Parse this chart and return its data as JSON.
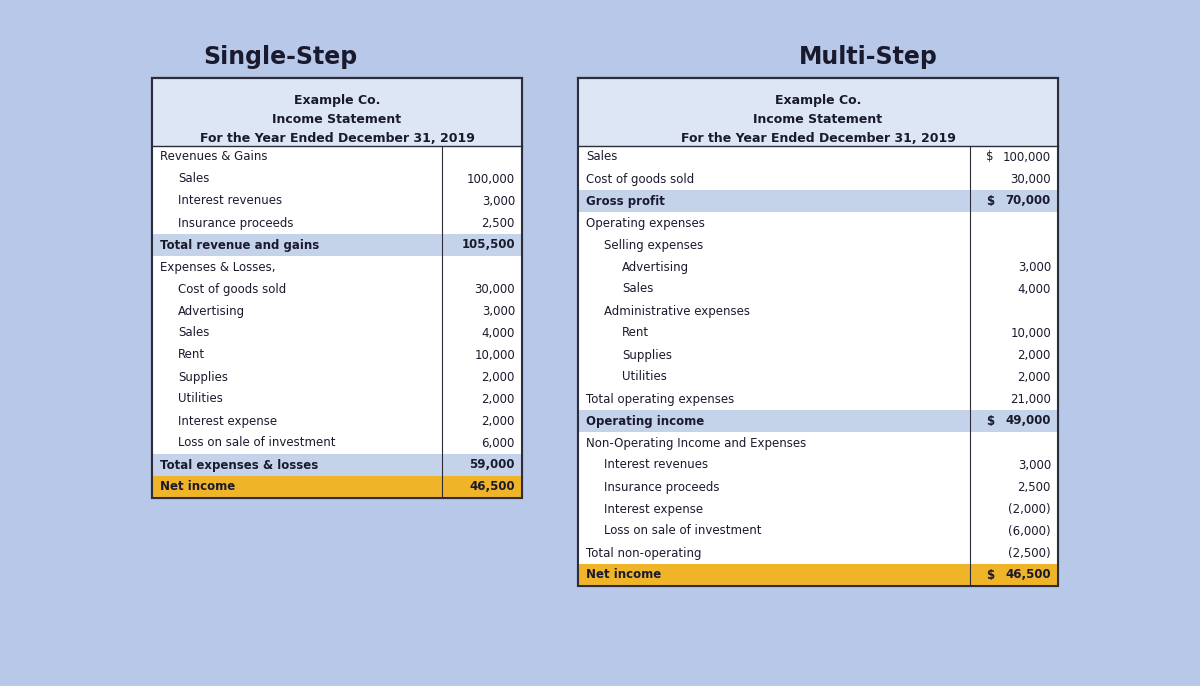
{
  "bg_color": "#b8c8e8",
  "table_bg": "#ffffff",
  "header_bg": "#dce6f5",
  "highlight_bg": "#c5d3ea",
  "gold_bg": "#f0b429",
  "border_color": "#2c2c3a",
  "text_color": "#1a1a2e",
  "title_left": "Single-Step",
  "title_right": "Multi-Step",
  "left_header": [
    "Example Co.",
    "Income Statement",
    "For the Year Ended December 31, 2019"
  ],
  "right_header": [
    "Example Co.",
    "Income Statement",
    "For the Year Ended December 31, 2019"
  ],
  "single_step_rows": [
    {
      "label": "Revenues & Gains",
      "value": "",
      "indent": 0,
      "bold": false,
      "highlight": false,
      "gold": false
    },
    {
      "label": "Sales",
      "value": "100,000",
      "indent": 1,
      "bold": false,
      "highlight": false,
      "gold": false
    },
    {
      "label": "Interest revenues",
      "value": "3,000",
      "indent": 1,
      "bold": false,
      "highlight": false,
      "gold": false
    },
    {
      "label": "Insurance proceeds",
      "value": "2,500",
      "indent": 1,
      "bold": false,
      "highlight": false,
      "gold": false
    },
    {
      "label": "Total revenue and gains",
      "value": "105,500",
      "indent": 0,
      "bold": true,
      "highlight": true,
      "gold": false
    },
    {
      "label": "Expenses & Losses,",
      "value": "",
      "indent": 0,
      "bold": false,
      "highlight": false,
      "gold": false
    },
    {
      "label": "Cost of goods sold",
      "value": "30,000",
      "indent": 1,
      "bold": false,
      "highlight": false,
      "gold": false
    },
    {
      "label": "Advertising",
      "value": "3,000",
      "indent": 1,
      "bold": false,
      "highlight": false,
      "gold": false
    },
    {
      "label": "Sales",
      "value": "4,000",
      "indent": 1,
      "bold": false,
      "highlight": false,
      "gold": false
    },
    {
      "label": "Rent",
      "value": "10,000",
      "indent": 1,
      "bold": false,
      "highlight": false,
      "gold": false
    },
    {
      "label": "Supplies",
      "value": "2,000",
      "indent": 1,
      "bold": false,
      "highlight": false,
      "gold": false
    },
    {
      "label": "Utilities",
      "value": "2,000",
      "indent": 1,
      "bold": false,
      "highlight": false,
      "gold": false
    },
    {
      "label": "Interest expense",
      "value": "2,000",
      "indent": 1,
      "bold": false,
      "highlight": false,
      "gold": false
    },
    {
      "label": "Loss on sale of investment",
      "value": "6,000",
      "indent": 1,
      "bold": false,
      "highlight": false,
      "gold": false
    },
    {
      "label": "Total expenses & losses",
      "value": "59,000",
      "indent": 0,
      "bold": true,
      "highlight": true,
      "gold": false
    },
    {
      "label": "Net income",
      "value": "46,500",
      "indent": 0,
      "bold": true,
      "highlight": false,
      "gold": true
    }
  ],
  "multi_step_rows": [
    {
      "label": "Sales",
      "value": "100,000",
      "col1": "$",
      "indent": 0,
      "bold": false,
      "highlight": false,
      "gold": false
    },
    {
      "label": "Cost of goods sold",
      "value": "30,000",
      "col1": "",
      "indent": 0,
      "bold": false,
      "highlight": false,
      "gold": false
    },
    {
      "label": "Gross profit",
      "value": "70,000",
      "col1": "$",
      "indent": 0,
      "bold": true,
      "highlight": true,
      "gold": false
    },
    {
      "label": "Operating expenses",
      "value": "",
      "col1": "",
      "indent": 0,
      "bold": false,
      "highlight": false,
      "gold": false
    },
    {
      "label": "Selling expenses",
      "value": "",
      "col1": "",
      "indent": 1,
      "bold": false,
      "highlight": false,
      "gold": false
    },
    {
      "label": "Advertising",
      "value": "3,000",
      "col1": "",
      "indent": 2,
      "bold": false,
      "highlight": false,
      "gold": false
    },
    {
      "label": "Sales",
      "value": "4,000",
      "col1": "",
      "indent": 2,
      "bold": false,
      "highlight": false,
      "gold": false
    },
    {
      "label": "Administrative expenses",
      "value": "",
      "col1": "",
      "indent": 1,
      "bold": false,
      "highlight": false,
      "gold": false
    },
    {
      "label": "Rent",
      "value": "10,000",
      "col1": "",
      "indent": 2,
      "bold": false,
      "highlight": false,
      "gold": false
    },
    {
      "label": "Supplies",
      "value": "2,000",
      "col1": "",
      "indent": 2,
      "bold": false,
      "highlight": false,
      "gold": false
    },
    {
      "label": "Utilities",
      "value": "2,000",
      "col1": "",
      "indent": 2,
      "bold": false,
      "highlight": false,
      "gold": false
    },
    {
      "label": "Total operating expenses",
      "value": "21,000",
      "col1": "",
      "indent": 0,
      "bold": false,
      "highlight": false,
      "gold": false
    },
    {
      "label": "Operating income",
      "value": "49,000",
      "col1": "$",
      "indent": 0,
      "bold": true,
      "highlight": true,
      "gold": false
    },
    {
      "label": "Non-Operating Income and Expenses",
      "value": "",
      "col1": "",
      "indent": 0,
      "bold": false,
      "highlight": false,
      "gold": false
    },
    {
      "label": "Interest revenues",
      "value": "3,000",
      "col1": "",
      "indent": 1,
      "bold": false,
      "highlight": false,
      "gold": false
    },
    {
      "label": "Insurance proceeds",
      "value": "2,500",
      "col1": "",
      "indent": 1,
      "bold": false,
      "highlight": false,
      "gold": false
    },
    {
      "label": "Interest expense",
      "value": "(2,000)",
      "col1": "",
      "indent": 1,
      "bold": false,
      "highlight": false,
      "gold": false
    },
    {
      "label": "Loss on sale of investment",
      "value": "(6,000)",
      "col1": "",
      "indent": 1,
      "bold": false,
      "highlight": false,
      "gold": false
    },
    {
      "label": "Total non-operating",
      "value": "(2,500)",
      "col1": "",
      "indent": 0,
      "bold": false,
      "highlight": false,
      "gold": false
    },
    {
      "label": "Net income",
      "value": "46,500",
      "col1": "$",
      "indent": 0,
      "bold": true,
      "highlight": false,
      "gold": true
    }
  ],
  "fig_width": 12.0,
  "fig_height": 6.86,
  "dpi": 100
}
